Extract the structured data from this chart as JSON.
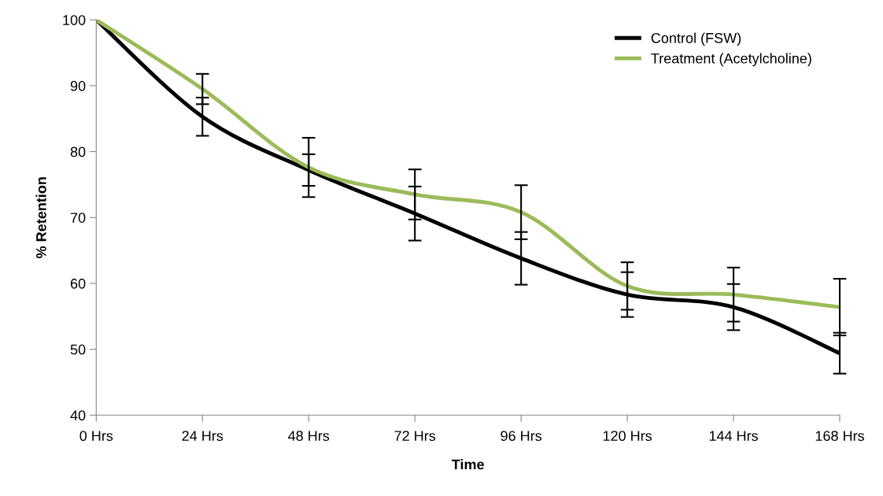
{
  "chart_data": {
    "type": "line",
    "xlabel": "Time",
    "ylabel": "% Retention",
    "categories": [
      "0 Hrs",
      "24 Hrs",
      "48 Hrs",
      "72 Hrs",
      "96 Hrs",
      "120 Hrs",
      "144 Hrs",
      "168 Hrs"
    ],
    "series": [
      {
        "name": "Control (FSW)",
        "color": "#000000",
        "values": [
          100,
          85.3,
          77.2,
          70.6,
          63.8,
          58.3,
          56.4,
          49.4
        ],
        "errors": [
          null,
          2.9,
          2.4,
          4.1,
          4.0,
          3.4,
          3.5,
          3.1
        ]
      },
      {
        "name": "Treatment (Acetylcholine)",
        "color": "#9bbb59",
        "values": [
          100,
          89.5,
          77.6,
          73.5,
          70.8,
          59.6,
          58.3,
          56.4
        ],
        "errors": [
          null,
          2.3,
          4.5,
          3.8,
          4.1,
          3.6,
          4.1,
          4.3
        ]
      }
    ],
    "ylim": [
      40,
      100
    ],
    "yticks": [
      40,
      50,
      60,
      70,
      80,
      90,
      100
    ],
    "grid": false,
    "legend": "top right",
    "marker": "none",
    "line_style": "solid"
  }
}
